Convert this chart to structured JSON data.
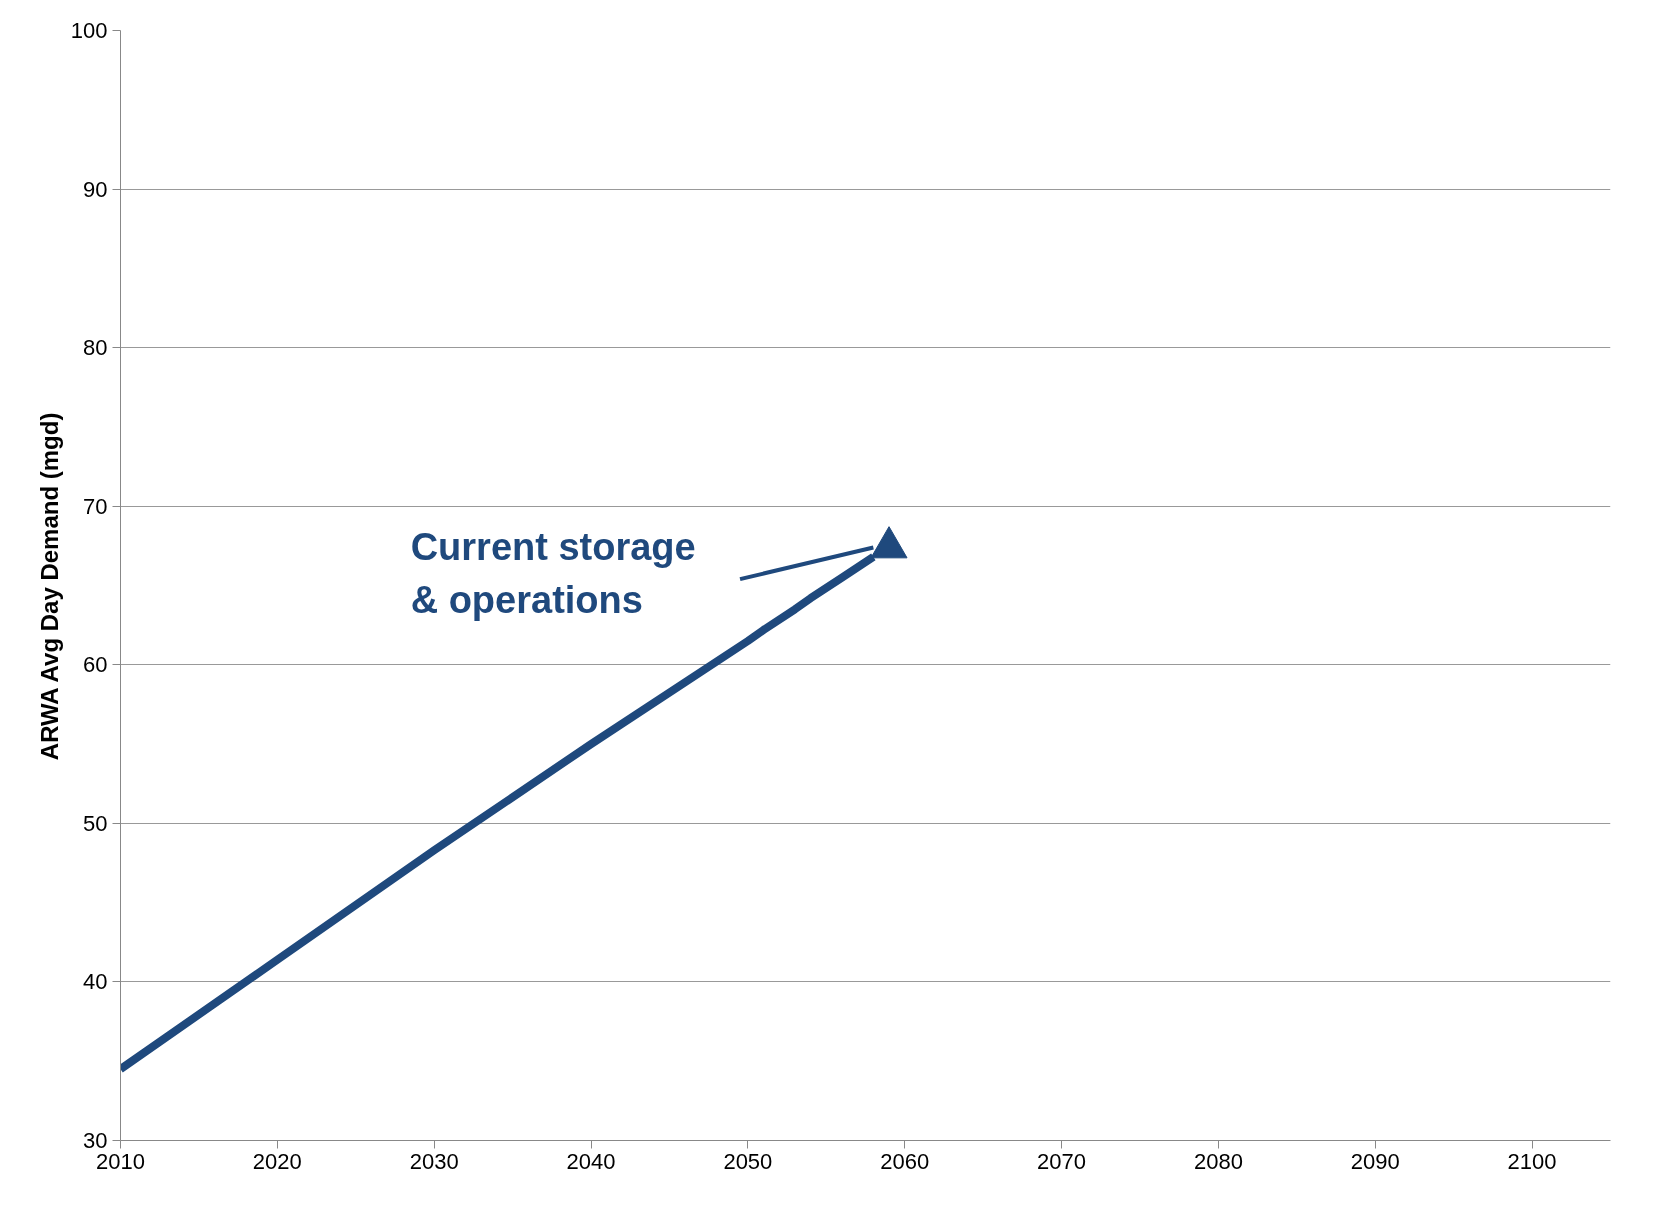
{
  "chart_data": {
    "type": "line",
    "ylabel": "ARWA Avg Day Demand (mgd)",
    "xlim": [
      2010,
      2105
    ],
    "xticks": [
      2010,
      2020,
      2030,
      2040,
      2050,
      2060,
      2070,
      2080,
      2090,
      2100
    ],
    "ylim": [
      30,
      100
    ],
    "yticks": [
      30,
      40,
      50,
      60,
      70,
      80,
      90,
      100
    ],
    "grid": "y",
    "series": [
      {
        "color": "#1f497d",
        "x": [
          2010,
          2020,
          2030,
          2040,
          2050,
          2051,
          2053,
          2054,
          2056,
          2058
        ],
        "values": [
          34.5,
          41.4,
          48.3,
          55.0,
          61.5,
          62.2,
          63.5,
          64.2,
          65.5,
          66.8
        ],
        "marker": "none"
      },
      {
        "type": "scatter",
        "color": "#1f497d",
        "x": [
          2059
        ],
        "values": [
          67.4
        ],
        "marker": "triangle"
      }
    ],
    "annotations": [
      {
        "text": "Current storage\n& operations",
        "x": 2058,
        "y": 67.4
      }
    ]
  }
}
